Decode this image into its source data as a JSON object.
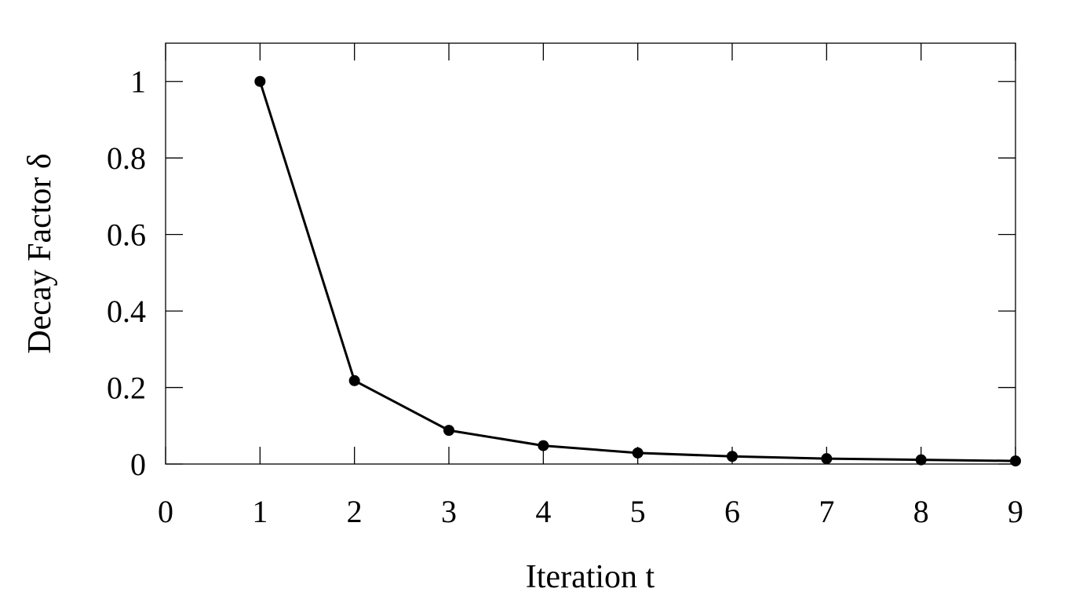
{
  "chart_data": {
    "type": "line",
    "title": "",
    "xlabel": "Iteration t",
    "ylabel": "Decay Factor δ",
    "xlim": [
      0,
      9
    ],
    "ylim": [
      0,
      1.1
    ],
    "x_ticks": [
      0,
      1,
      2,
      3,
      4,
      5,
      6,
      7,
      8,
      9
    ],
    "x_tick_labels": [
      "0",
      "1",
      "2",
      "3",
      "4",
      "5",
      "6",
      "7",
      "8",
      "9"
    ],
    "y_ticks": [
      0,
      0.2,
      0.4,
      0.6,
      0.8,
      1.0
    ],
    "y_tick_labels": [
      "0",
      "0.2",
      "0.4",
      "0.6",
      "0.8",
      "1"
    ],
    "grid": false,
    "legend": "none",
    "series": [
      {
        "x": [
          1,
          2,
          3,
          4,
          5,
          6,
          7,
          8,
          9
        ],
        "y": [
          1.0,
          0.218,
          0.088,
          0.048,
          0.029,
          0.02,
          0.014,
          0.011,
          0.008
        ],
        "color": "#000000",
        "marker": "circle"
      }
    ]
  }
}
